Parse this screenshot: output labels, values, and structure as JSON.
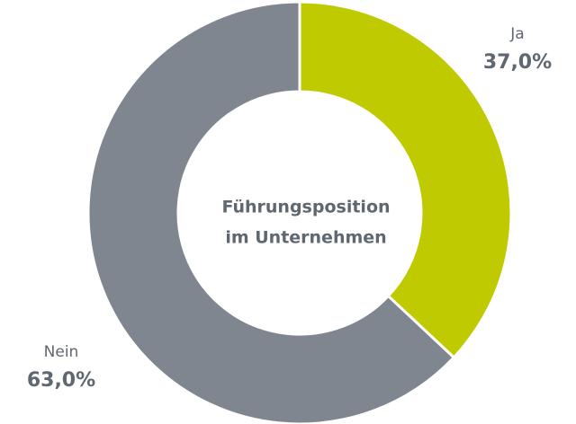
{
  "chart_data": {
    "type": "donut",
    "title": [
      "Führungsposition",
      "im Unternehmen"
    ],
    "categories": [
      "Ja",
      "Nein"
    ],
    "values": [
      37,
      63
    ],
    "value_labels": [
      "37,0%",
      "63,0%"
    ],
    "colors": [
      "#bfcb00",
      "#7f8690"
    ]
  }
}
